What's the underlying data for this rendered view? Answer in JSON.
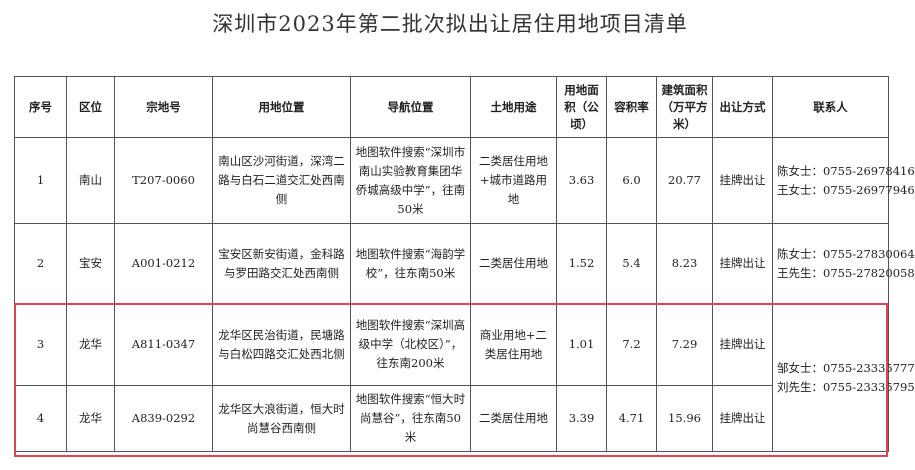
{
  "title": "深圳市2023年第二批次拟出让居住用地项目清单",
  "headers": {
    "no": "序号",
    "district": "区位",
    "parcel_id": "宗地号",
    "location": "用地位置",
    "navigation": "导航位置",
    "land_use": "土地用途",
    "area": "用地面积（公顷）",
    "far": "容积率",
    "building_area": "建筑面积（万平方米）",
    "method": "出让方式",
    "contact": "联系人"
  },
  "rows": [
    {
      "no": "1",
      "district": "南山",
      "parcel_id": "T207-0060",
      "location": "南山区沙河街道，深湾二路与白石二道交汇处西南侧",
      "navigation": "地图软件搜索“深圳市南山实验教育集团华侨城高级中学”，往南50米",
      "land_use": "二类居住用地+城市道路用地",
      "area": "3.63",
      "far": "6.0",
      "building_area": "20.77",
      "method": "挂牌出让",
      "contacts": [
        "陈女士：0755-26978416",
        "王女士：0755-26977946"
      ]
    },
    {
      "no": "2",
      "district": "宝安",
      "parcel_id": "A001-0212",
      "location": "宝安区新安街道，金科路与罗田路交汇处西南侧",
      "navigation": "地图软件搜索“海韵学校”，往东南50米",
      "land_use": "二类居住用地",
      "area": "1.52",
      "far": "5.4",
      "building_area": "8.23",
      "method": "挂牌出让",
      "contacts": [
        "陈女士：0755-27830064",
        "王先生：0755-27820058"
      ]
    },
    {
      "no": "3",
      "district": "龙华",
      "parcel_id": "A811-0347",
      "location": "龙华区民治街道，民塘路与白松四路交汇处西北侧",
      "navigation": "地图软件搜索“深圳高级中学（北校区）”，往东南200米",
      "land_use": "商业用地+二类居住用地",
      "area": "1.01",
      "far": "7.2",
      "building_area": "7.29",
      "method": "挂牌出让"
    },
    {
      "no": "4",
      "district": "龙华",
      "parcel_id": "A839-0292",
      "location": "龙华区大浪街道，恒大时尚慧谷西南侧",
      "navigation": "地图软件搜索“恒大时尚慧谷”，往东南50米",
      "land_use": "二类居住用地",
      "area": "3.39",
      "far": "4.71",
      "building_area": "15.96",
      "method": "挂牌出让"
    }
  ],
  "shared_contacts_rows_3_4": [
    "邹女士：0755-23335777",
    "刘先生：0755-23335795"
  ],
  "highlight_color": "#e04451"
}
